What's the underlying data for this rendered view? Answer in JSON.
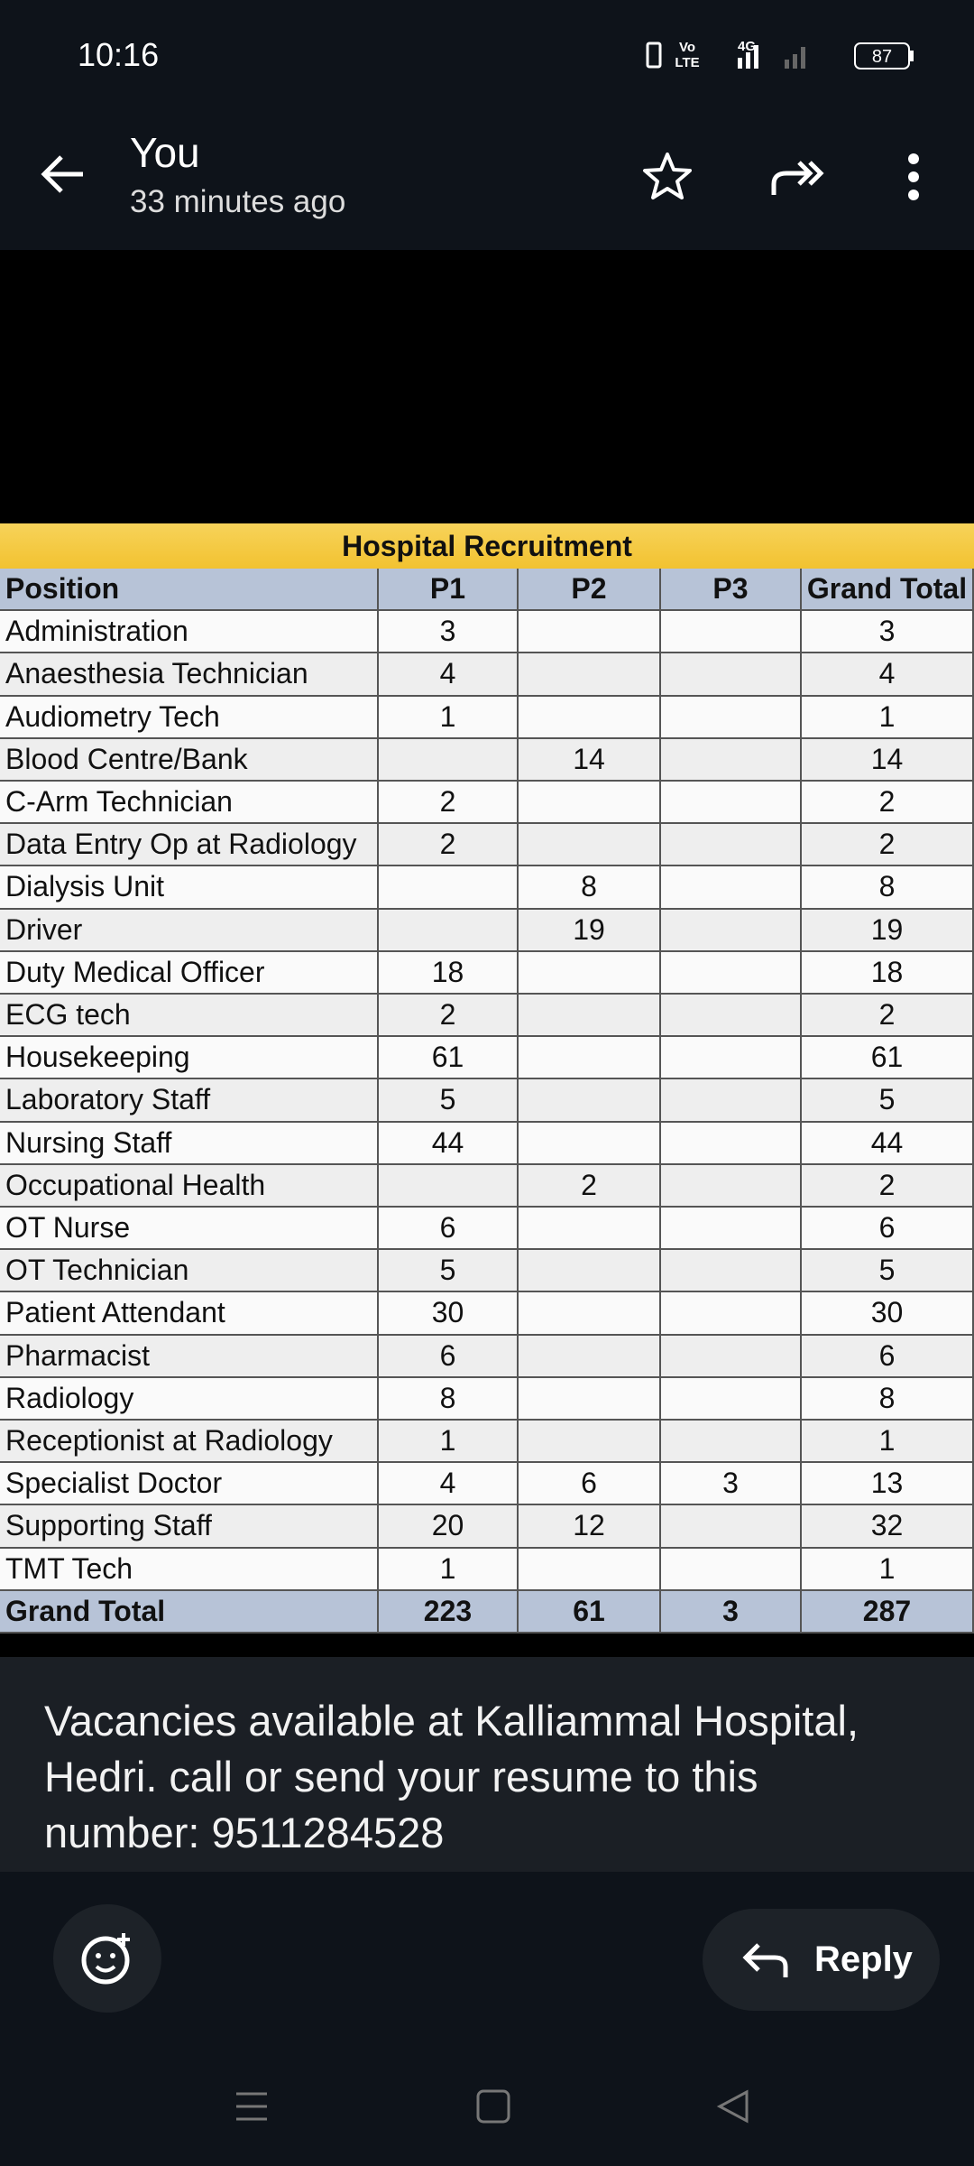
{
  "status_bar": {
    "time": "10:16",
    "volte_top": "Vo",
    "volte_bottom": "LTE",
    "network": "4G",
    "battery": "87"
  },
  "header": {
    "sender": "You",
    "timestamp": "33 minutes ago"
  },
  "table": {
    "title": "Hospital Recruitment",
    "columns": [
      "Position",
      "P1",
      "P2",
      "P3",
      "Grand Total"
    ],
    "rows": [
      [
        "Administration",
        3,
        null,
        null,
        3
      ],
      [
        "Anaesthesia Technician",
        4,
        null,
        null,
        4
      ],
      [
        "Audiometry Tech",
        1,
        null,
        null,
        1
      ],
      [
        "Blood Centre/Bank",
        null,
        14,
        null,
        14
      ],
      [
        "C-Arm Technician",
        2,
        null,
        null,
        2
      ],
      [
        "Data Entry Op at Radiology",
        2,
        null,
        null,
        2
      ],
      [
        "Dialysis Unit",
        null,
        8,
        null,
        8
      ],
      [
        "Driver",
        null,
        19,
        null,
        19
      ],
      [
        "Duty Medical Officer",
        18,
        null,
        null,
        18
      ],
      [
        "ECG tech",
        2,
        null,
        null,
        2
      ],
      [
        "Housekeeping",
        61,
        null,
        null,
        61
      ],
      [
        "Laboratory Staff",
        5,
        null,
        null,
        5
      ],
      [
        "Nursing Staff",
        44,
        null,
        null,
        44
      ],
      [
        "Occupational Health",
        null,
        2,
        null,
        2
      ],
      [
        "OT Nurse",
        6,
        null,
        null,
        6
      ],
      [
        "OT Technician",
        5,
        null,
        null,
        5
      ],
      [
        "Patient Attendant",
        30,
        null,
        null,
        30
      ],
      [
        "Pharmacist",
        6,
        null,
        null,
        6
      ],
      [
        "Radiology",
        8,
        null,
        null,
        8
      ],
      [
        "Receptionist at Radiology",
        1,
        null,
        null,
        1
      ],
      [
        "Specialist Doctor",
        4,
        6,
        3,
        13
      ],
      [
        "Supporting Staff",
        20,
        12,
        null,
        32
      ],
      [
        "TMT Tech",
        1,
        null,
        null,
        1
      ]
    ],
    "total": [
      "Grand Total",
      223,
      61,
      3,
      287
    ]
  },
  "message": {
    "lines": [
      "Vacancies available at Kalliammal Hospital,",
      "Hedri. call or send your resume to this",
      "number: 9511284528"
    ]
  },
  "actions": {
    "reply": "Reply"
  }
}
